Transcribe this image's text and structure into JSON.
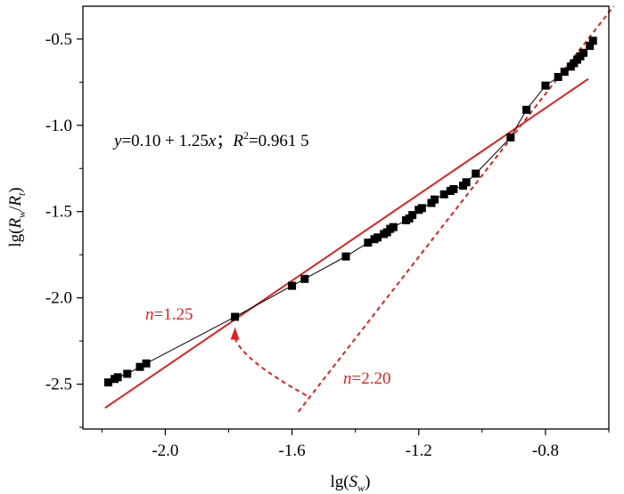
{
  "chart_data": {
    "type": "scatter",
    "xlabel": {
      "pre": "lg(",
      "var": "S",
      "sub": "w",
      "post": ")"
    },
    "ylabel": {
      "pre": "lg(",
      "var1": "R",
      "sub1": "w",
      "slash": "/",
      "var2": "R",
      "sub2": "t",
      "post": ")"
    },
    "xlim": [
      -2.26,
      -0.6
    ],
    "ylim": [
      -2.76,
      -0.31
    ],
    "xticks": [
      -2.0,
      -1.6,
      -1.2,
      -0.8
    ],
    "xtick_labels": [
      "-2.0",
      "-1.6",
      "-1.2",
      "-0.8"
    ],
    "yticks": [
      -2.5,
      -2.0,
      -1.5,
      -1.0,
      -0.5
    ],
    "ytick_labels": [
      "-2.5",
      "-2.0",
      "-1.5",
      "-1.0",
      "-0.5"
    ],
    "series": [
      {
        "marker": "square",
        "color": "#000000",
        "connected": true,
        "x": [
          -2.18,
          -2.16,
          -2.15,
          -2.12,
          -2.08,
          -2.06,
          -1.78,
          -1.6,
          -1.56,
          -1.43,
          -1.36,
          -1.34,
          -1.33,
          -1.31,
          -1.3,
          -1.29,
          -1.28,
          -1.24,
          -1.23,
          -1.22,
          -1.2,
          -1.19,
          -1.16,
          -1.15,
          -1.12,
          -1.1,
          -1.09,
          -1.06,
          -1.05,
          -1.02,
          -0.91,
          -0.86,
          -0.8,
          -0.76,
          -0.74,
          -0.72,
          -0.71,
          -0.7,
          -0.69,
          -0.68,
          -0.66,
          -0.65
        ],
        "y": [
          -2.49,
          -2.47,
          -2.46,
          -2.44,
          -2.4,
          -2.38,
          -2.11,
          -1.93,
          -1.89,
          -1.76,
          -1.68,
          -1.66,
          -1.65,
          -1.63,
          -1.62,
          -1.6,
          -1.59,
          -1.55,
          -1.54,
          -1.52,
          -1.49,
          -1.48,
          -1.45,
          -1.43,
          -1.4,
          -1.38,
          -1.37,
          -1.35,
          -1.33,
          -1.28,
          -1.07,
          -0.91,
          -0.77,
          -0.72,
          -0.69,
          -0.66,
          -0.64,
          -0.62,
          -0.6,
          -0.58,
          -0.54,
          -0.51
        ]
      }
    ],
    "fit_line": {
      "color": "#e02020",
      "style": "solid",
      "intercept": 0.1,
      "slope": 1.25,
      "x_range": [
        -2.19,
        -0.665
      ]
    },
    "steep_line": {
      "color": "#e02020",
      "style": "dashed",
      "points": [
        [
          -1.58,
          -2.66
        ],
        [
          -0.585,
          -0.31
        ]
      ]
    },
    "equation": {
      "y": "y",
      "mid": "=0.10 + 1.25",
      "x": "x",
      "sep": "；",
      "r": "R",
      "sup": "2",
      "val": "=0.961 5"
    },
    "label_n1": {
      "n": "n",
      "val": "=1.25"
    },
    "label_n2": {
      "n": "n",
      "val": "=2.20"
    },
    "arc_annotation": {
      "color": "#e02020",
      "from": [
        -1.555,
        -2.565
      ],
      "to": [
        -1.78,
        -2.17
      ]
    }
  }
}
